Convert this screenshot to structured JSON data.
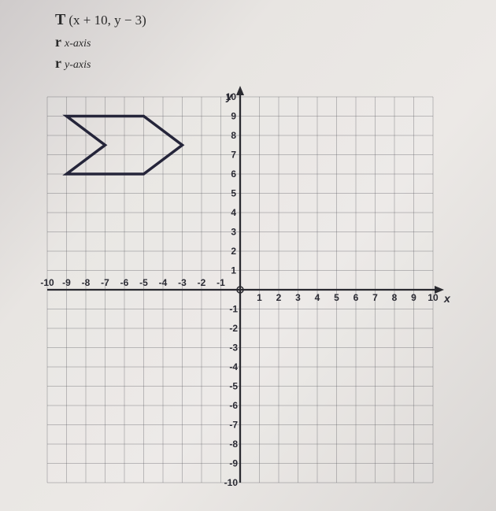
{
  "transformations": {
    "translation": "(x + 10, y − 3)",
    "reflection1_sub": "x-axis",
    "reflection2_sub": "y-axis"
  },
  "graph": {
    "type": "coordinate-grid",
    "background_color": "#e6e3e0",
    "grid_color": "rgba(90,90,95,0.35)",
    "axis_color": "#2a2a30",
    "xmin": -10,
    "xmax": 10,
    "ymin": -10,
    "ymax": 10,
    "xtick_step": 1,
    "ytick_step": 1,
    "x_axis_label": "x",
    "y_axis_label": "y",
    "x_ticks_neg": [
      "-10",
      "-9",
      "-8",
      "-7",
      "-6",
      "-5",
      "-4",
      "-3",
      "-2",
      "-1"
    ],
    "x_ticks_pos": [
      "1",
      "2",
      "3",
      "4",
      "5",
      "6",
      "7",
      "8",
      "9",
      "10"
    ],
    "y_ticks_pos": [
      "1",
      "2",
      "3",
      "4",
      "5",
      "6",
      "7",
      "8",
      "9",
      "10"
    ],
    "y_ticks_neg": [
      "-1",
      "-2",
      "-3",
      "-4",
      "-5",
      "-6",
      "-7",
      "-8",
      "-9",
      "-10"
    ],
    "polygon": {
      "stroke": "#25253a",
      "stroke_width": 3.5,
      "points": [
        [
          -9,
          9
        ],
        [
          -5,
          9
        ],
        [
          -3,
          7.5
        ],
        [
          -5,
          6
        ],
        [
          -9,
          6
        ],
        [
          -7,
          7.5
        ]
      ]
    }
  }
}
